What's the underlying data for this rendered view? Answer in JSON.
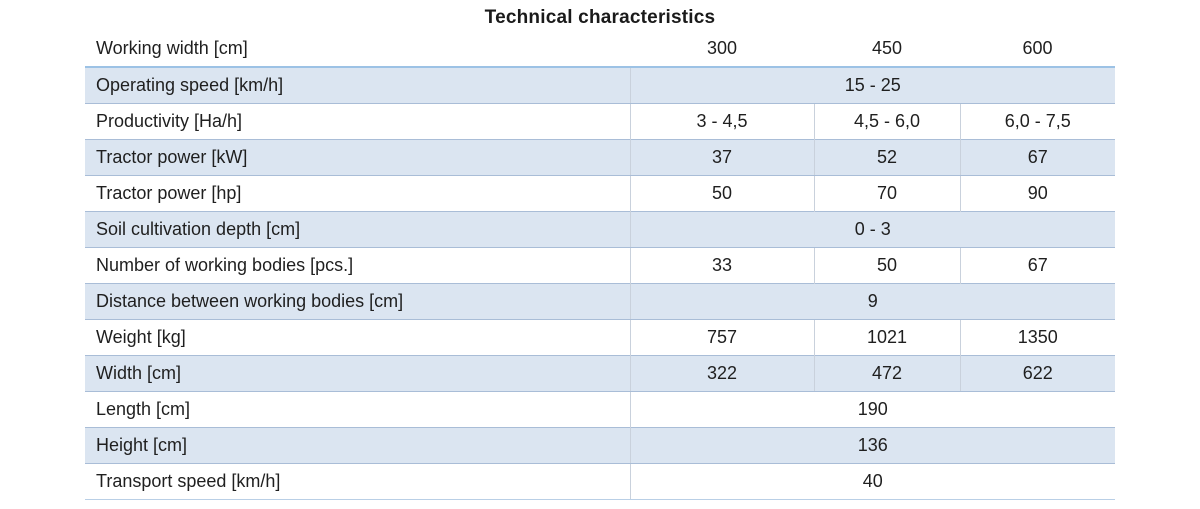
{
  "title": "Technical characteristics",
  "table": {
    "header": {
      "label": "Working width [cm]",
      "values": [
        "300",
        "450",
        "600"
      ]
    },
    "rows": [
      {
        "label": "Operating speed [km/h]",
        "span": "15 - 25",
        "shaded": true
      },
      {
        "label": "Productivity [Ha/h]",
        "values": [
          "3 - 4,5",
          "4,5 - 6,0",
          "6,0 - 7,5"
        ],
        "shaded": false
      },
      {
        "label": "Tractor power [kW]",
        "values": [
          "37",
          "52",
          "67"
        ],
        "shaded": true
      },
      {
        "label": "Tractor power [hp]",
        "values": [
          "50",
          "70",
          "90"
        ],
        "shaded": false
      },
      {
        "label": "Soil cultivation depth [cm]",
        "span": "0 - 3",
        "shaded": true
      },
      {
        "label": "Number of working bodies [pcs.]",
        "values": [
          "33",
          "50",
          "67"
        ],
        "shaded": false
      },
      {
        "label": "Distance between working bodies [cm]",
        "span": "9",
        "shaded": true
      },
      {
        "label": "Weight [kg]",
        "values": [
          "757",
          "1021",
          "1350"
        ],
        "shaded": false
      },
      {
        "label": "Width [cm]",
        "values": [
          "322",
          "472",
          "622"
        ],
        "shaded": true
      },
      {
        "label": "Length [cm]",
        "span": "190",
        "shaded": false
      },
      {
        "label": "Height [cm]",
        "span": "136",
        "shaded": true
      },
      {
        "label": "Transport speed [km/h]",
        "span": "40",
        "shaded": false
      }
    ],
    "colors": {
      "shaded_row_bg": "#dbe5f1",
      "shaded_row_border": "#a9bdd7",
      "header_underline": "#9cc2e5",
      "grid_line": "#c9d1dc",
      "text": "#1f1f1f"
    }
  }
}
